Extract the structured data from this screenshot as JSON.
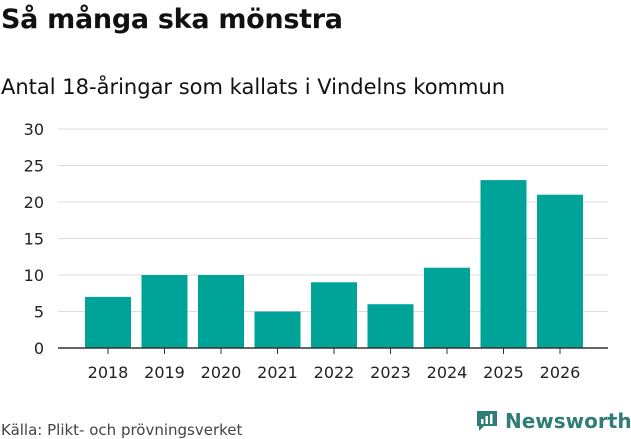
{
  "header": {
    "title": "Så många ska mönstra",
    "subtitle": "Antal 18-åringar som kallats i Vindelns kommun"
  },
  "footer": {
    "source": "Källa: Plikt- och prövningsverket",
    "brand": "Newsworthy"
  },
  "colors": {
    "bar": "#00A398",
    "grid": "#dddddd",
    "axis": "#333333",
    "brand": "#2f7d76"
  },
  "chart_data": {
    "type": "bar",
    "title": "Så många ska mönstra",
    "subtitle": "Antal 18-åringar som kallats i Vindelns kommun",
    "categories": [
      "2018",
      "2019",
      "2020",
      "2021",
      "2022",
      "2023",
      "2024",
      "2025",
      "2026"
    ],
    "values": [
      7,
      10,
      10,
      5,
      9,
      6,
      11,
      23,
      21
    ],
    "xlabel": "",
    "ylabel": "",
    "ylim": [
      0,
      30
    ],
    "yticks": [
      "0",
      "5",
      "10",
      "15",
      "20",
      "25",
      "30"
    ],
    "grid": true,
    "legend": "none"
  }
}
